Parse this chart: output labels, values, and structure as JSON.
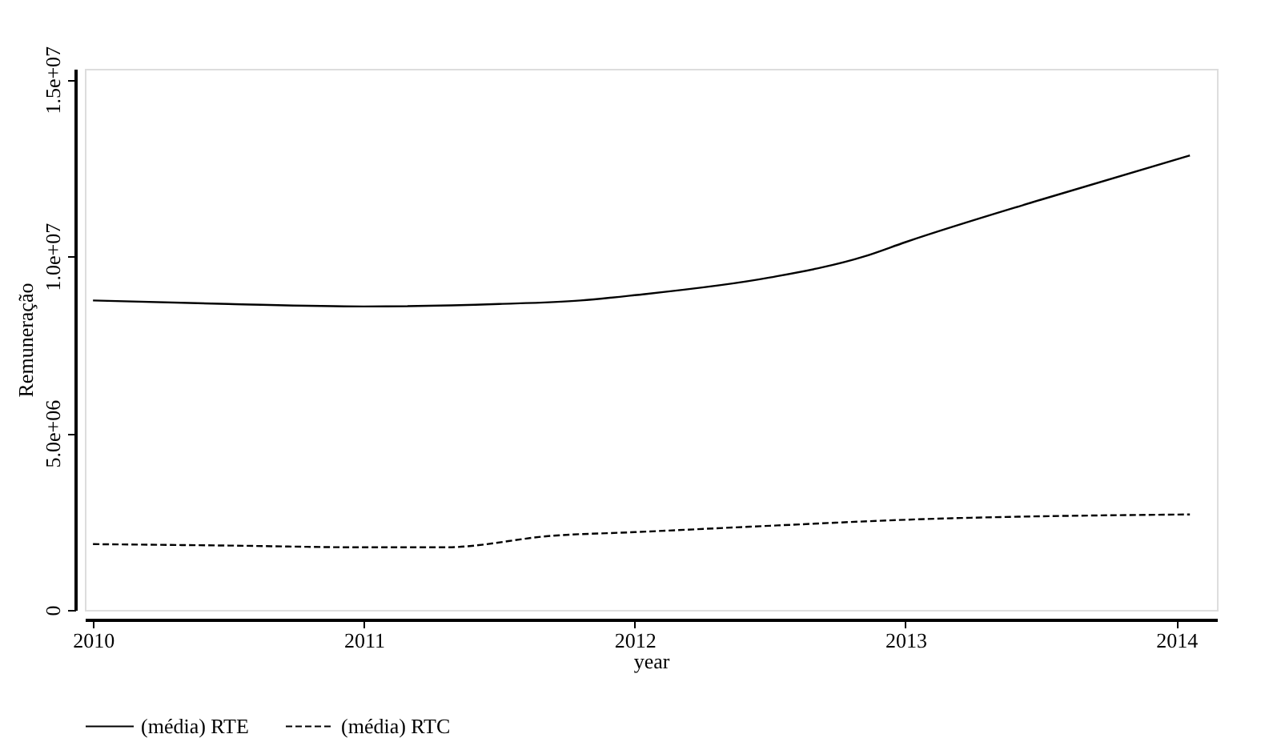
{
  "chart_data": {
    "type": "line",
    "xlabel": "year",
    "ylabel": "Remuneração",
    "xlim": [
      2009.97,
      2014.15
    ],
    "xticks": [
      2010,
      2011,
      2012,
      2013,
      2014
    ],
    "ylim": [
      0,
      15300000
    ],
    "yticks": [
      0,
      {
        "value": 5000000,
        "label": "5.0e+06"
      },
      {
        "value": 10000000,
        "label": "1.0e+07"
      },
      {
        "value": 15000000,
        "label": "1.5e+07"
      }
    ],
    "grid": false,
    "legend": "bottom",
    "marker": "none",
    "series": [
      {
        "name": "(média) RTE",
        "color": "#000000",
        "line_style": "solid",
        "x": [
          2010,
          2010.5,
          2011,
          2011.5,
          2011.8,
          2012,
          2012.5,
          2012.85,
          2013,
          2013.5,
          2014.05
        ],
        "values": [
          8750000,
          8650000,
          8580000,
          8650000,
          8750000,
          8900000,
          9400000,
          10000000,
          10400000,
          11600000,
          12850000
        ]
      },
      {
        "name": "(média) RTC",
        "color": "#000000",
        "line_style": "dashed",
        "x": [
          2010,
          2010.5,
          2011,
          2011.3,
          2011.7,
          2012,
          2012.5,
          2013,
          2014.05
        ],
        "values": [
          1860000,
          1820000,
          1770000,
          1770000,
          2100000,
          2200000,
          2380000,
          2550000,
          2700000
        ]
      }
    ]
  }
}
